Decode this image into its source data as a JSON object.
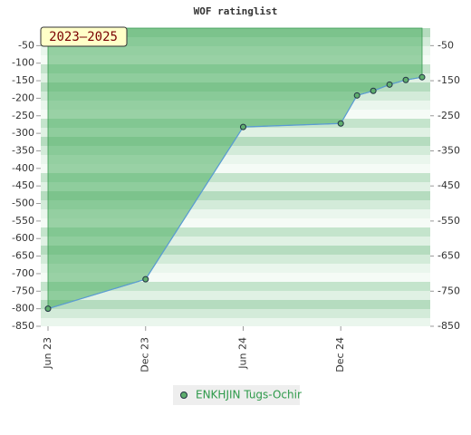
{
  "chart_data": {
    "type": "line",
    "title": "WOF ratinglist",
    "annotation": "2023–2025",
    "x": [
      "2023-06",
      "2023-12",
      "2024-06",
      "2024-12",
      "2025-01",
      "2025-02",
      "2025-03",
      "2025-04",
      "2025-05"
    ],
    "xlim": [
      "2023-06",
      "2025-05"
    ],
    "xticks": [
      {
        "value": "2023-06",
        "label": "Jun 23"
      },
      {
        "value": "2023-12",
        "label": "Dec 23"
      },
      {
        "value": "2024-06",
        "label": "Jun 24"
      },
      {
        "value": "2024-12",
        "label": "Dec 24"
      }
    ],
    "series": [
      {
        "name": "ENKHJIN Tugs-Ochir",
        "color": "#5b9bd5",
        "values": [
          -800,
          -716,
          -282,
          -272,
          -192,
          -179,
          -161,
          -148,
          -140
        ]
      }
    ],
    "ylim": [
      -850,
      0
    ],
    "yticks": [
      -50,
      -100,
      -150,
      -200,
      -250,
      -300,
      -350,
      -400,
      -450,
      -500,
      -550,
      -600,
      -650,
      -700,
      -750,
      -800,
      -850
    ],
    "y2lim": [
      -850,
      0
    ],
    "y2ticks": [
      -50,
      -150,
      -250,
      -350,
      -450,
      -550,
      -650,
      -750,
      -850
    ]
  }
}
